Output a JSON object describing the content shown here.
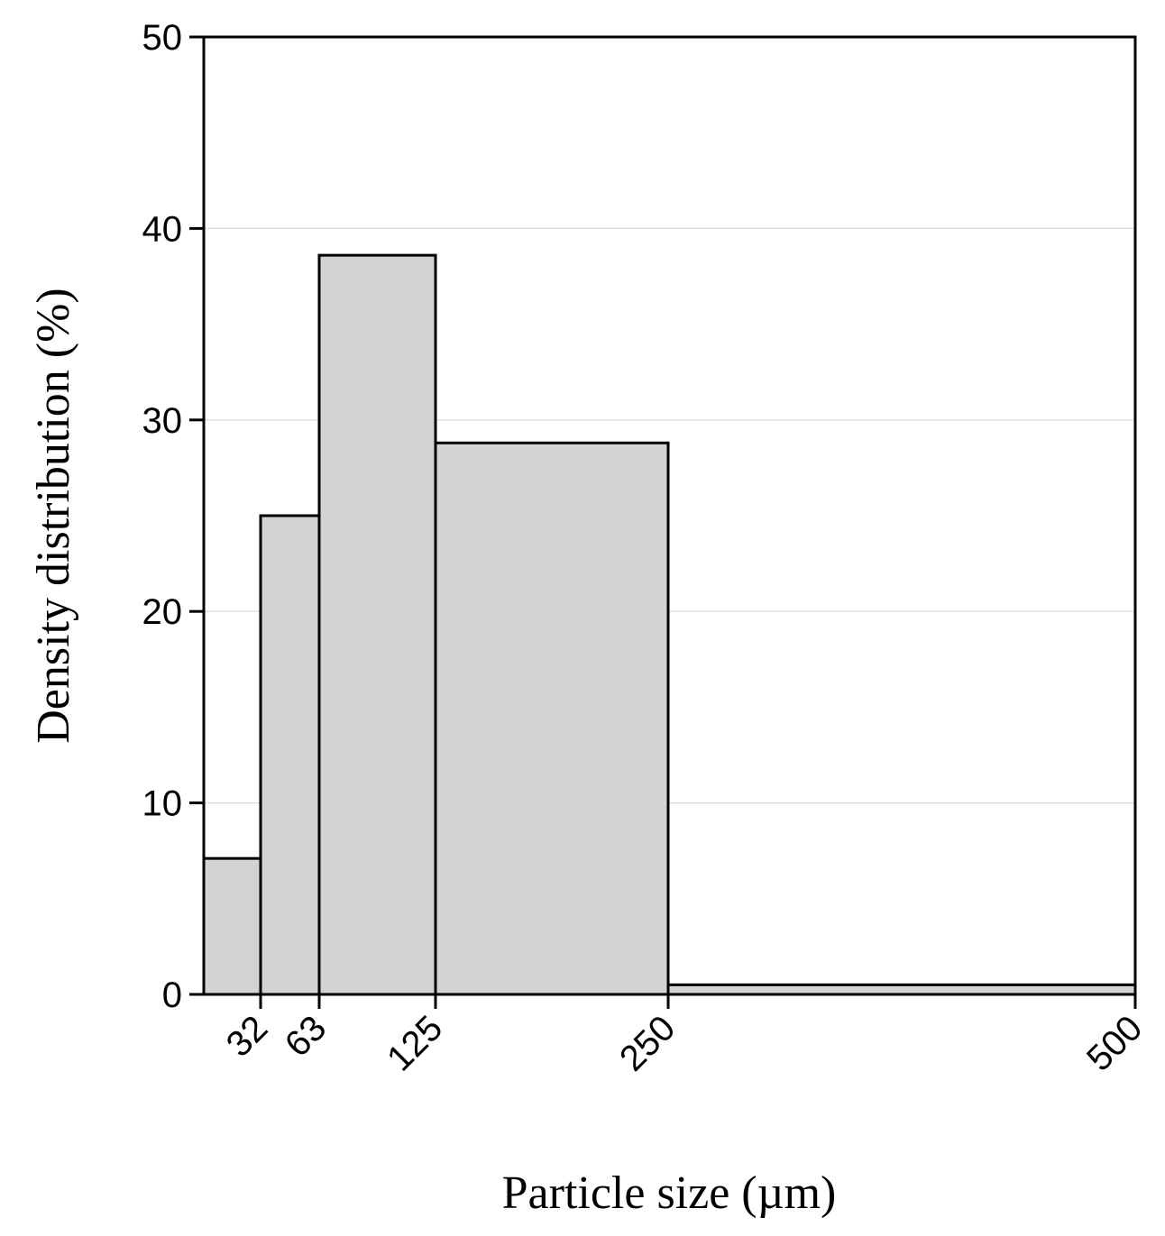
{
  "chart_data": {
    "type": "bar",
    "title": "",
    "xlabel": "Particle size (µm)",
    "ylabel": "Density distribution (%)",
    "x_ticks": [
      32,
      63,
      125,
      250,
      500
    ],
    "y_ticks": [
      0,
      10,
      20,
      30,
      40,
      50
    ],
    "ylim": [
      0,
      50
    ],
    "bins": [
      {
        "from": 0,
        "to": 32,
        "value": 7.1
      },
      {
        "from": 32,
        "to": 63,
        "value": 25.0
      },
      {
        "from": 63,
        "to": 125,
        "value": 38.6
      },
      {
        "from": 125,
        "to": 250,
        "value": 28.8
      },
      {
        "from": 250,
        "to": 500,
        "value": 0.5
      }
    ],
    "grid": true,
    "legend": "none",
    "colors": {
      "bar_fill": "#d3d3d3",
      "bar_stroke": "#000000",
      "grid": "#d9d9d9",
      "axis": "#000000"
    }
  }
}
